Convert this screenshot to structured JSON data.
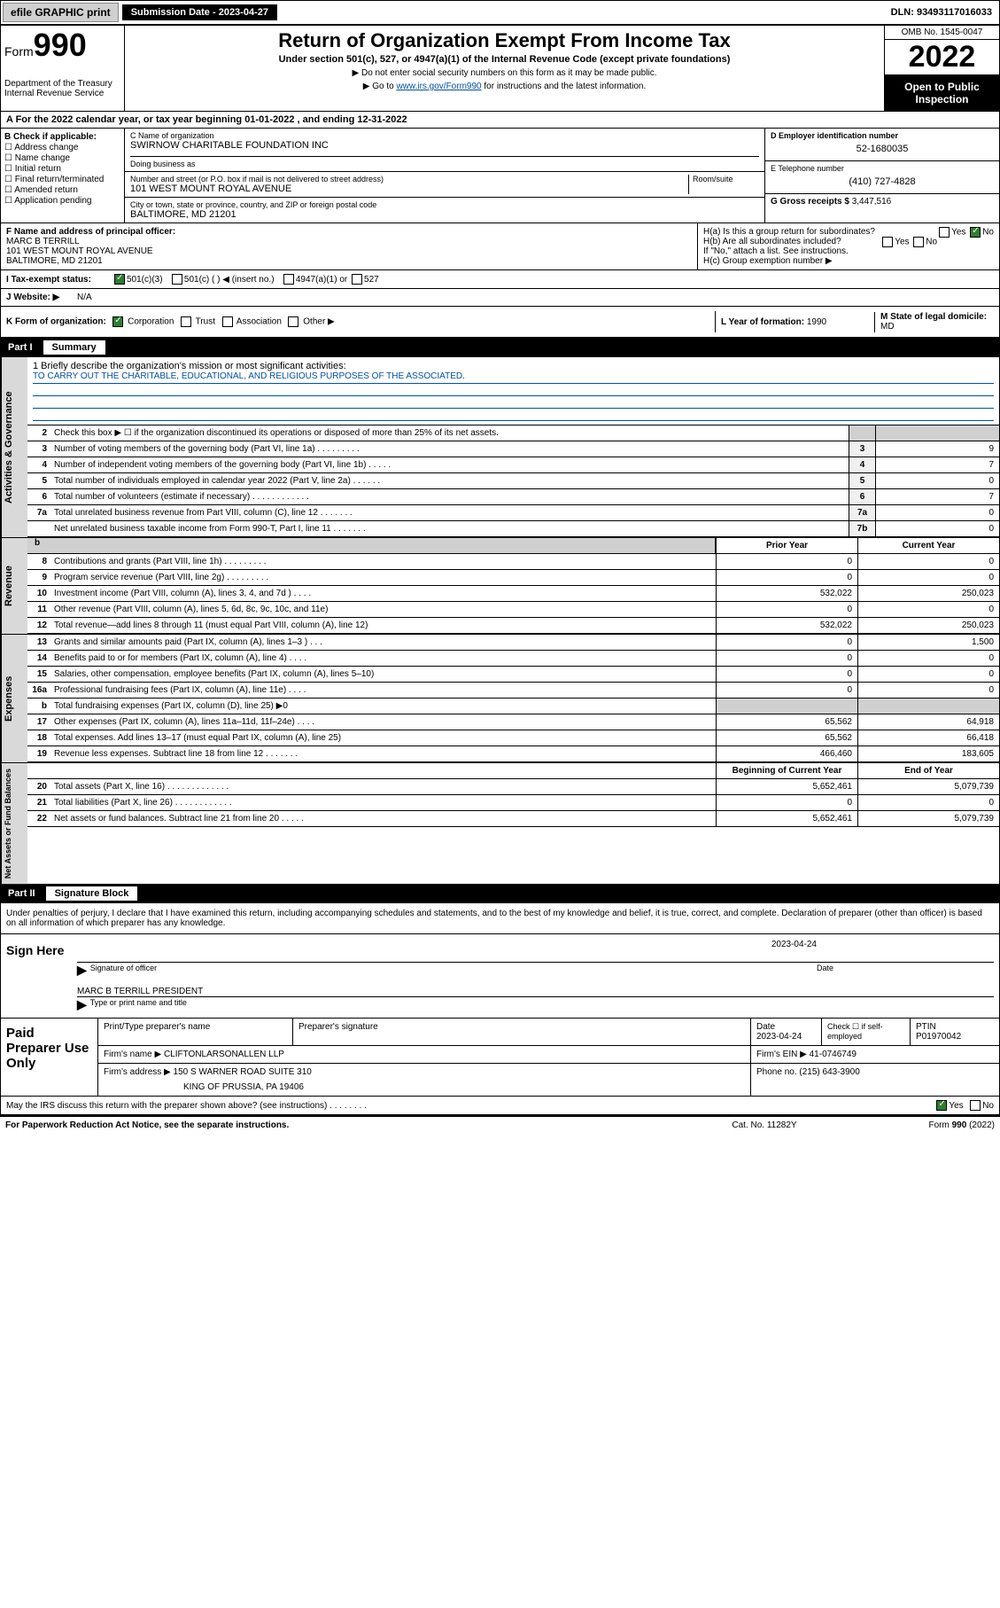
{
  "topbar": {
    "efile": "efile GRAPHIC print",
    "submission_label": "Submission Date - 2023-04-27",
    "dln": "DLN: 93493117016033"
  },
  "header": {
    "form_word": "Form",
    "form_num": "990",
    "dept": "Department of the Treasury",
    "irs": "Internal Revenue Service",
    "title": "Return of Organization Exempt From Income Tax",
    "subtitle": "Under section 501(c), 527, or 4947(a)(1) of the Internal Revenue Code (except private foundations)",
    "note1": "▶ Do not enter social security numbers on this form as it may be made public.",
    "note2_pre": "▶ Go to ",
    "note2_link": "www.irs.gov/Form990",
    "note2_post": " for instructions and the latest information.",
    "omb": "OMB No. 1545-0047",
    "year": "2022",
    "open": "Open to Public Inspection"
  },
  "line_a": "A For the 2022 calendar year, or tax year beginning 01-01-2022    , and ending 12-31-2022",
  "box_b": {
    "title": "B Check if applicable:",
    "opts": [
      "Address change",
      "Name change",
      "Initial return",
      "Final return/terminated",
      "Amended return",
      "Application pending"
    ]
  },
  "box_c": {
    "label": "C Name of organization",
    "name": "SWIRNOW CHARITABLE FOUNDATION INC",
    "dba_label": "Doing business as",
    "addr_label": "Number and street (or P.O. box if mail is not delivered to street address)",
    "room_label": "Room/suite",
    "addr": "101 WEST MOUNT ROYAL AVENUE",
    "city_label": "City or town, state or province, country, and ZIP or foreign postal code",
    "city": "BALTIMORE, MD  21201"
  },
  "box_d": {
    "label": "D Employer identification number",
    "val": "52-1680035"
  },
  "box_e": {
    "label": "E Telephone number",
    "val": "(410) 727-4828"
  },
  "box_g": {
    "label": "G Gross receipts $",
    "val": "3,447,516"
  },
  "box_f": {
    "label": "F Name and address of principal officer:",
    "name": "MARC B TERRILL",
    "addr": "101 WEST MOUNT ROYAL AVENUE",
    "city": "BALTIMORE, MD  21201"
  },
  "box_h": {
    "ha": "H(a)  Is this a group return for subordinates?",
    "hb": "H(b)  Are all subordinates included?",
    "hb_note": "If \"No,\" attach a list. See instructions.",
    "hc": "H(c)  Group exemption number ▶",
    "yes": "Yes",
    "no": "No"
  },
  "row_i": {
    "label": "I   Tax-exempt status:",
    "o1": "501(c)(3)",
    "o2": "501(c) (  ) ◀ (insert no.)",
    "o3": "4947(a)(1) or",
    "o4": "527"
  },
  "row_j": {
    "label": "J   Website: ▶",
    "val": "N/A"
  },
  "row_k": {
    "label": "K Form of organization:",
    "o1": "Corporation",
    "o2": "Trust",
    "o3": "Association",
    "o4": "Other ▶"
  },
  "row_l": {
    "label": "L Year of formation:",
    "val": "1990"
  },
  "row_m": {
    "label": "M State of legal domicile:",
    "val": "MD"
  },
  "part1": {
    "num": "Part I",
    "title": "Summary"
  },
  "side_labels": {
    "gov": "Activities & Governance",
    "rev": "Revenue",
    "exp": "Expenses",
    "net": "Net Assets or Fund Balances"
  },
  "mission": {
    "q": "1   Briefly describe the organization's mission or most significant activities:",
    "text": "TO CARRY OUT THE CHARITABLE, EDUCATIONAL, AND RELIGIOUS PURPOSES OF THE ASSOCIATED."
  },
  "gov_rows": [
    {
      "n": "2",
      "t": "Check this box ▶ ☐  if the organization discontinued its operations or disposed of more than 25% of its net assets.",
      "box": "",
      "v": ""
    },
    {
      "n": "3",
      "t": "Number of voting members of the governing body (Part VI, line 1a)   .    .    .    .    .    .    .    .    .",
      "box": "3",
      "v": "9"
    },
    {
      "n": "4",
      "t": "Number of independent voting members of the governing body (Part VI, line 1b)   .    .    .    .    .",
      "box": "4",
      "v": "7"
    },
    {
      "n": "5",
      "t": "Total number of individuals employed in calendar year 2022 (Part V, line 2a)   .    .    .    .    .    .",
      "box": "5",
      "v": "0"
    },
    {
      "n": "6",
      "t": "Total number of volunteers (estimate if necessary)   .    .    .    .    .    .    .    .    .    .    .    .",
      "box": "6",
      "v": "7"
    },
    {
      "n": "7a",
      "t": "Total unrelated business revenue from Part VIII, column (C), line 12   .    .    .    .    .    .    .",
      "box": "7a",
      "v": "0"
    },
    {
      "n": "",
      "t": "Net unrelated business taxable income from Form 990-T, Part I, line 11   .    .    .    .    .    .    .",
      "box": "7b",
      "v": "0"
    }
  ],
  "fin_header": {
    "prior": "Prior Year",
    "current": "Current Year"
  },
  "rev_rows": [
    {
      "n": "8",
      "t": "Contributions and grants (Part VIII, line 1h)   .    .    .    .    .    .    .    .    .",
      "p": "0",
      "c": "0"
    },
    {
      "n": "9",
      "t": "Program service revenue (Part VIII, line 2g)   .    .    .    .    .    .    .    .    .",
      "p": "0",
      "c": "0"
    },
    {
      "n": "10",
      "t": "Investment income (Part VIII, column (A), lines 3, 4, and 7d )   .    .    .    .",
      "p": "532,022",
      "c": "250,023"
    },
    {
      "n": "11",
      "t": "Other revenue (Part VIII, column (A), lines 5, 6d, 8c, 9c, 10c, and 11e)",
      "p": "0",
      "c": "0"
    },
    {
      "n": "12",
      "t": "Total revenue—add lines 8 through 11 (must equal Part VIII, column (A), line 12)",
      "p": "532,022",
      "c": "250,023"
    }
  ],
  "exp_rows": [
    {
      "n": "13",
      "t": "Grants and similar amounts paid (Part IX, column (A), lines 1–3 )   .    .    .",
      "p": "0",
      "c": "1,500"
    },
    {
      "n": "14",
      "t": "Benefits paid to or for members (Part IX, column (A), line 4)   .    .    .    .",
      "p": "0",
      "c": "0"
    },
    {
      "n": "15",
      "t": "Salaries, other compensation, employee benefits (Part IX, column (A), lines 5–10)",
      "p": "0",
      "c": "0"
    },
    {
      "n": "16a",
      "t": "Professional fundraising fees (Part IX, column (A), line 11e)   .    .    .    .",
      "p": "0",
      "c": "0"
    },
    {
      "n": "b",
      "t": "Total fundraising expenses (Part IX, column (D), line 25) ▶0",
      "p": "",
      "c": "",
      "grey": true
    },
    {
      "n": "17",
      "t": "Other expenses (Part IX, column (A), lines 11a–11d, 11f–24e)   .    .    .    .",
      "p": "65,562",
      "c": "64,918"
    },
    {
      "n": "18",
      "t": "Total expenses. Add lines 13–17 (must equal Part IX, column (A), line 25)",
      "p": "65,562",
      "c": "66,418"
    },
    {
      "n": "19",
      "t": "Revenue less expenses. Subtract line 18 from line 12   .    .    .    .    .    .    .",
      "p": "466,460",
      "c": "183,605"
    }
  ],
  "net_header": {
    "beg": "Beginning of Current Year",
    "end": "End of Year"
  },
  "net_rows": [
    {
      "n": "20",
      "t": "Total assets (Part X, line 16)   .    .    .    .    .    .    .    .    .    .    .    .    .",
      "p": "5,652,461",
      "c": "5,079,739"
    },
    {
      "n": "21",
      "t": "Total liabilities (Part X, line 26)   .    .    .    .    .    .    .    .    .    .    .    .",
      "p": "0",
      "c": "0"
    },
    {
      "n": "22",
      "t": "Net assets or fund balances. Subtract line 21 from line 20   .    .    .    .    .",
      "p": "5,652,461",
      "c": "5,079,739"
    }
  ],
  "part2": {
    "num": "Part II",
    "title": "Signature Block"
  },
  "penalties": "Under penalties of perjury, I declare that I have examined this return, including accompanying schedules and statements, and to the best of my knowledge and belief, it is true, correct, and complete. Declaration of preparer (other than officer) is based on all information of which preparer has any knowledge.",
  "sign": {
    "here": "Sign Here",
    "date": "2023-04-24",
    "sig_label": "Signature of officer",
    "date_label": "Date",
    "name": "MARC B TERRILL PRESIDENT",
    "name_label": "Type or print name and title"
  },
  "prep": {
    "label": "Paid Preparer Use Only",
    "h1": "Print/Type preparer's name",
    "h2": "Preparer's signature",
    "h3": "Date",
    "h3v": "2023-04-24",
    "h4": "Check ☐ if self-employed",
    "h5": "PTIN",
    "h5v": "P01970042",
    "firm_name_l": "Firm's name    ▶",
    "firm_name": "CLIFTONLARSONALLEN LLP",
    "firm_ein_l": "Firm's EIN ▶",
    "firm_ein": "41-0746749",
    "firm_addr_l": "Firm's address ▶",
    "firm_addr1": "150 S WARNER ROAD SUITE 310",
    "firm_addr2": "KING OF PRUSSIA, PA  19406",
    "phone_l": "Phone no.",
    "phone": "(215) 643-3900"
  },
  "discuss": {
    "q": "May the IRS discuss this return with the preparer shown above? (see instructions)   .    .    .    .    .    .    .    .",
    "yes": "Yes",
    "no": "No"
  },
  "footer": {
    "l": "For Paperwork Reduction Act Notice, see the separate instructions.",
    "m": "Cat. No. 11282Y",
    "r": "Form 990 (2022)"
  }
}
